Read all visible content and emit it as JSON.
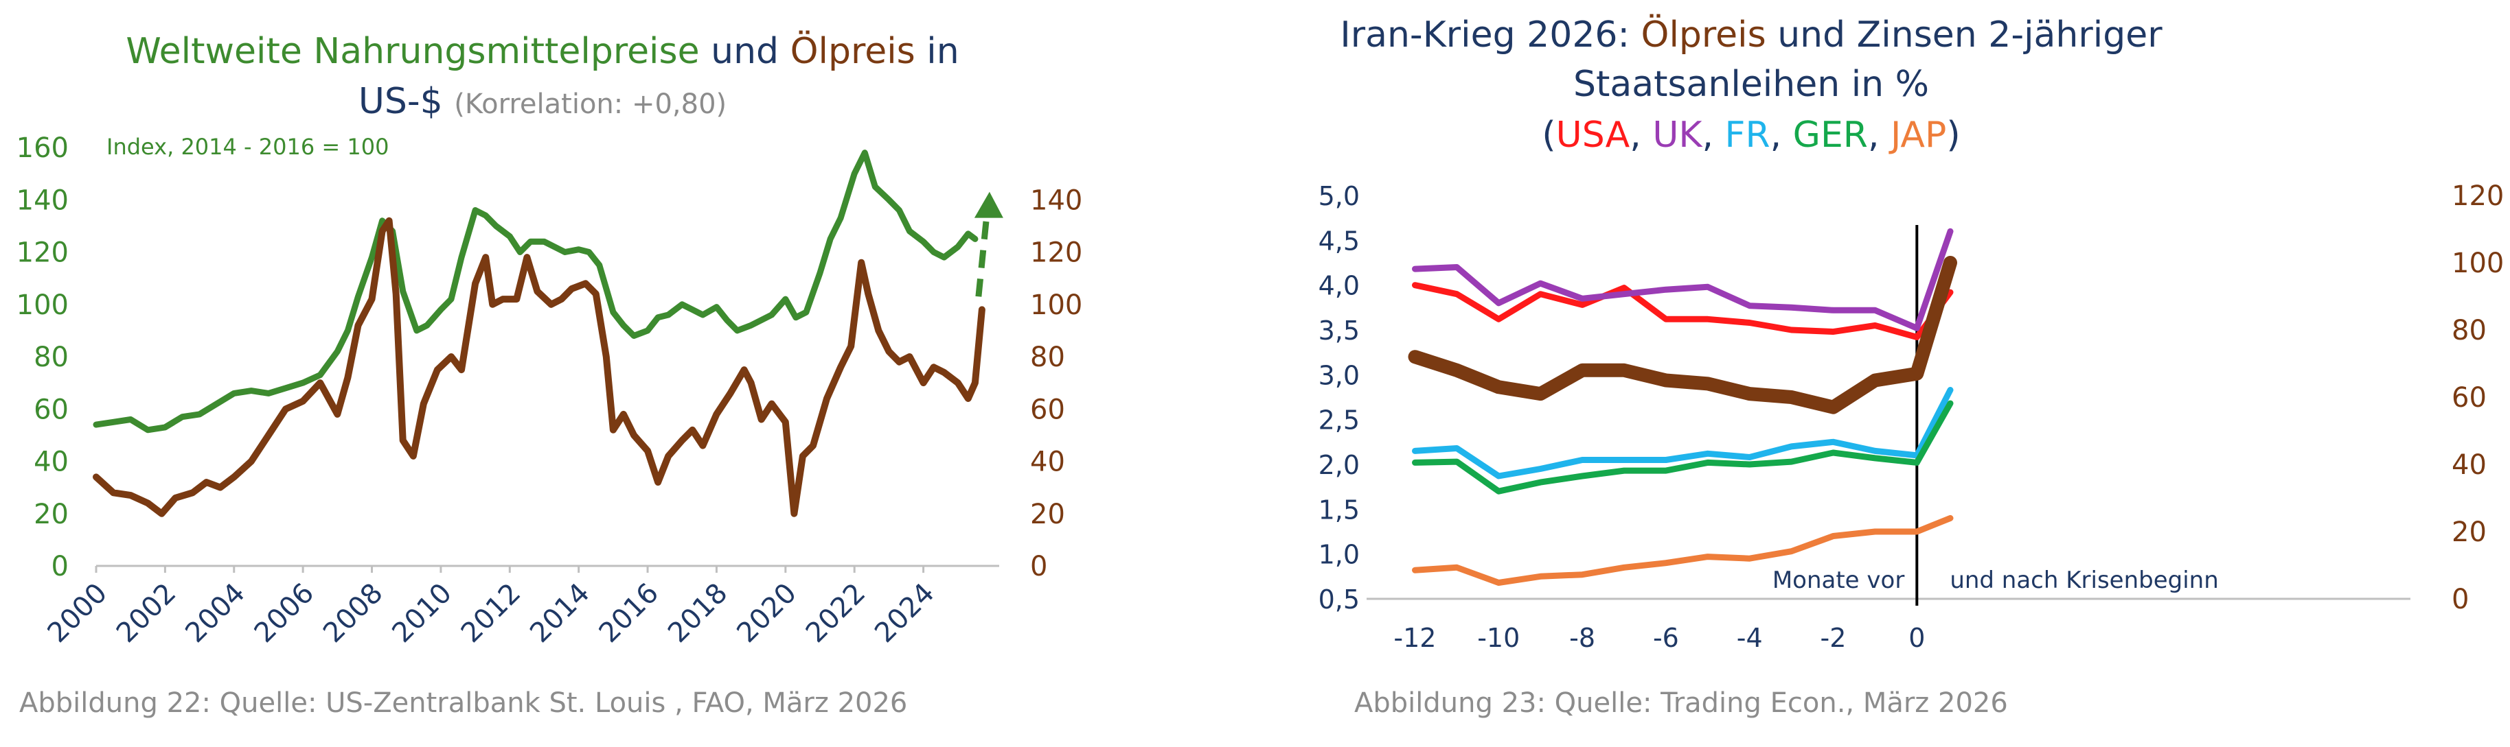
{
  "colors": {
    "green": "#3d8b2f",
    "brown": "#7a3a12",
    "navy": "#1f3864",
    "grey": "#8c8c8c",
    "usa": "#ff1a1a",
    "uk": "#9a3cb4",
    "fr": "#1fb4ec",
    "ger": "#14a84b",
    "jap": "#ee7d3a",
    "oil": "#7a3a12"
  },
  "left": {
    "caption": "Abbildung 22: Quelle: US-Zentralbank St. Louis , FAO, März 2026",
    "chart_data": {
      "type": "line",
      "title_parts": [
        {
          "text": "Weltweite Nahrungsmittelpreise",
          "color": "green"
        },
        {
          "text": " und ",
          "color": "navy"
        },
        {
          "text": "Ölpreis",
          "color": "brown"
        },
        {
          "text": " in",
          "color": "navy"
        }
      ],
      "title_line2": "US-$",
      "subtitle": "(Korrelation: +0,80)",
      "annotation": "Index, 2014 - 2016 = 100",
      "xlim": [
        2000,
        2026.2
      ],
      "x_ticks": [
        "2000",
        "2002",
        "2004",
        "2006",
        "2008",
        "2010",
        "2012",
        "2014",
        "2016",
        "2018",
        "2020",
        "2022",
        "2024"
      ],
      "y_left": {
        "lim": [
          0,
          160
        ],
        "ticks": [
          "0",
          "20",
          "40",
          "60",
          "80",
          "100",
          "120",
          "140",
          "160"
        ]
      },
      "y_right": {
        "lim": [
          0,
          140
        ],
        "ticks": [
          "0",
          "20",
          "40",
          "60",
          "80",
          "100",
          "120",
          "140"
        ]
      },
      "grid": false,
      "arrow": {
        "x": 2025.6,
        "from": 103,
        "to": 142,
        "axis": "right"
      },
      "series": [
        {
          "name": "Weltweite Nahrungsmittelpreise",
          "color": "green",
          "axis": "left",
          "x": [
            2000,
            2000.5,
            2001,
            2001.5,
            2002,
            2002.5,
            2003,
            2003.5,
            2004,
            2004.5,
            2005,
            2005.5,
            2006,
            2006.5,
            2007,
            2007.3,
            2007.6,
            2008,
            2008.3,
            2008.6,
            2008.9,
            2009.3,
            2009.6,
            2010,
            2010.3,
            2010.6,
            2011,
            2011.3,
            2011.6,
            2012,
            2012.3,
            2012.6,
            2013,
            2013.3,
            2013.6,
            2014,
            2014.3,
            2014.6,
            2015,
            2015.3,
            2015.6,
            2016,
            2016.3,
            2016.6,
            2017,
            2017.3,
            2017.6,
            2018,
            2018.3,
            2018.6,
            2019,
            2019.3,
            2019.6,
            2020,
            2020.3,
            2020.6,
            2021,
            2021.3,
            2021.6,
            2022,
            2022.3,
            2022.6,
            2023,
            2023.3,
            2023.6,
            2024,
            2024.3,
            2024.6,
            2025,
            2025.3,
            2025.5
          ],
          "y": [
            54,
            55,
            56,
            52,
            53,
            57,
            58,
            62,
            66,
            67,
            66,
            68,
            70,
            73,
            82,
            90,
            103,
            118,
            132,
            128,
            105,
            90,
            92,
            98,
            102,
            118,
            136,
            134,
            130,
            126,
            120,
            124,
            124,
            122,
            120,
            121,
            120,
            115,
            97,
            92,
            88,
            90,
            95,
            96,
            100,
            98,
            96,
            99,
            94,
            90,
            92,
            94,
            96,
            102,
            95,
            97,
            112,
            125,
            133,
            150,
            158,
            145,
            140,
            136,
            128,
            124,
            120,
            118,
            122,
            127,
            125
          ],
          "display_y": [
            54,
            55,
            56,
            52,
            53,
            57,
            58,
            62,
            66,
            67,
            66,
            68,
            70,
            73,
            82,
            90,
            103,
            118,
            132,
            128,
            105,
            90,
            92,
            98,
            102,
            118,
            136,
            134,
            130,
            126,
            120,
            124,
            124,
            122,
            120,
            121,
            120,
            115,
            97,
            92,
            88,
            90,
            95,
            96,
            100,
            98,
            96,
            99,
            94,
            90,
            92,
            94,
            96,
            102,
            95,
            97,
            112,
            125,
            133,
            150,
            158,
            145,
            140,
            136,
            128,
            124,
            120,
            118,
            122,
            127,
            125
          ]
        },
        {
          "name": "Ölpreis",
          "color": "brown",
          "axis": "right",
          "x": [
            2000,
            2000.5,
            2001,
            2001.5,
            2001.9,
            2002.3,
            2002.8,
            2003.2,
            2003.6,
            2004,
            2004.5,
            2005,
            2005.5,
            2006,
            2006.5,
            2007,
            2007.3,
            2007.6,
            2008,
            2008.3,
            2008.5,
            2008.7,
            2008.9,
            2009.2,
            2009.5,
            2009.9,
            2010.3,
            2010.6,
            2011,
            2011.3,
            2011.5,
            2011.8,
            2012.2,
            2012.5,
            2012.8,
            2013.2,
            2013.5,
            2013.8,
            2014.2,
            2014.5,
            2014.8,
            2015,
            2015.3,
            2015.6,
            2016,
            2016.3,
            2016.6,
            2017,
            2017.3,
            2017.6,
            2018,
            2018.4,
            2018.8,
            2019,
            2019.3,
            2019.6,
            2020,
            2020.25,
            2020.5,
            2020.8,
            2021.2,
            2021.6,
            2021.9,
            2022.2,
            2022.4,
            2022.7,
            2023,
            2023.3,
            2023.6,
            2024,
            2024.3,
            2024.6,
            2025,
            2025.3,
            2025.5,
            2025.7
          ],
          "y": [
            34,
            28,
            27,
            24,
            20,
            26,
            28,
            32,
            30,
            34,
            40,
            50,
            60,
            63,
            70,
            58,
            72,
            92,
            102,
            128,
            132,
            104,
            48,
            42,
            62,
            75,
            80,
            75,
            108,
            118,
            100,
            102,
            102,
            118,
            105,
            100,
            102,
            106,
            108,
            104,
            80,
            52,
            58,
            50,
            44,
            32,
            42,
            48,
            52,
            46,
            58,
            66,
            75,
            70,
            56,
            62,
            55,
            20,
            42,
            46,
            64,
            76,
            84,
            116,
            104,
            90,
            82,
            78,
            80,
            70,
            76,
            74,
            70,
            64,
            70,
            98
          ],
          "display_y": [
            34,
            28,
            27,
            24,
            20,
            26,
            28,
            32,
            30,
            34,
            40,
            50,
            60,
            63,
            70,
            58,
            72,
            92,
            102,
            128,
            132,
            104,
            48,
            42,
            62,
            75,
            80,
            75,
            108,
            118,
            100,
            102,
            102,
            118,
            105,
            100,
            102,
            106,
            108,
            104,
            80,
            52,
            58,
            50,
            44,
            32,
            42,
            48,
            52,
            46,
            58,
            66,
            75,
            70,
            56,
            62,
            55,
            20,
            42,
            46,
            64,
            76,
            84,
            116,
            104,
            90,
            82,
            78,
            80,
            70,
            76,
            74,
            70,
            64,
            70,
            98
          ]
        }
      ]
    }
  },
  "right": {
    "caption": "Abbildung 23: Quelle: Trading Econ., März 2026",
    "chart_data": {
      "type": "line",
      "title_line1_parts": [
        {
          "text": "Iran-Krieg 2026: ",
          "color": "navy"
        },
        {
          "text": "Ölpreis",
          "color": "brown"
        },
        {
          "text": " und Zinsen 2-jähriger",
          "color": "navy"
        }
      ],
      "title_line2": "Staatsanleihen in %",
      "title_line3_parts": [
        {
          "text": "(",
          "color": "navy"
        },
        {
          "text": "USA",
          "color": "usa"
        },
        {
          "text": ", ",
          "color": "navy"
        },
        {
          "text": "UK",
          "color": "uk"
        },
        {
          "text": ", ",
          "color": "navy"
        },
        {
          "text": "FR",
          "color": "fr"
        },
        {
          "text": ", ",
          "color": "navy"
        },
        {
          "text": "GER",
          "color": "ger"
        },
        {
          "text": ", ",
          "color": "navy"
        },
        {
          "text": "JAP",
          "color": "jap"
        },
        {
          "text": ")",
          "color": "navy"
        }
      ],
      "annotation_left": "Monate vor",
      "annotation_right": "und nach Krisenbeginn",
      "xlim": [
        -12.5,
        11.8
      ],
      "x_ticks": [
        "-12",
        "-10",
        "-8",
        "-6",
        "-4",
        "-2",
        "0"
      ],
      "y_left": {
        "lim": [
          0.5,
          5.0
        ],
        "ticks": [
          "0,5",
          "1,0",
          "1,5",
          "2,0",
          "2,5",
          "3,0",
          "3,5",
          "4,0",
          "4,5",
          "5,0"
        ]
      },
      "y_right": {
        "lim": [
          0,
          120
        ],
        "ticks": [
          "0",
          "20",
          "40",
          "60",
          "80",
          "100",
          "120"
        ]
      },
      "vline_x": 0,
      "grid": false,
      "series": [
        {
          "name": "USA",
          "color": "usa",
          "axis": "left",
          "x": [
            -12,
            -11,
            -10,
            -9,
            -8,
            -7,
            -6,
            -5,
            -4,
            -3,
            -2,
            -1,
            0,
            0.8
          ],
          "y": [
            4.0,
            3.9,
            3.62,
            3.9,
            3.78,
            3.97,
            3.62,
            3.62,
            3.58,
            3.5,
            3.48,
            3.55,
            3.42,
            3.92
          ]
        },
        {
          "name": "UK",
          "color": "uk",
          "axis": "left",
          "x": [
            -12,
            -11,
            -10,
            -9,
            -8,
            -7,
            -6,
            -5,
            -4,
            -3,
            -2,
            -1,
            0,
            0.8
          ],
          "y": [
            4.18,
            4.2,
            3.8,
            4.02,
            3.85,
            3.9,
            3.95,
            3.98,
            3.77,
            3.75,
            3.72,
            3.72,
            3.52,
            4.6
          ]
        },
        {
          "name": "FR",
          "color": "fr",
          "axis": "left",
          "x": [
            -12,
            -11,
            -10,
            -9,
            -8,
            -7,
            -6,
            -5,
            -4,
            -3,
            -2,
            -1,
            0,
            0.8
          ],
          "y": [
            2.15,
            2.18,
            1.87,
            1.95,
            2.05,
            2.05,
            2.05,
            2.12,
            2.08,
            2.2,
            2.25,
            2.15,
            2.1,
            2.83
          ]
        },
        {
          "name": "GER",
          "color": "ger",
          "axis": "left",
          "x": [
            -12,
            -11,
            -10,
            -9,
            -8,
            -7,
            -6,
            -5,
            -4,
            -3,
            -2,
            -1,
            0,
            0.8
          ],
          "y": [
            2.02,
            2.03,
            1.7,
            1.8,
            1.87,
            1.93,
            1.93,
            2.02,
            2.0,
            2.03,
            2.13,
            2.07,
            2.02,
            2.68
          ]
        },
        {
          "name": "JAP",
          "color": "jap",
          "axis": "left",
          "x": [
            -12,
            -11,
            -10,
            -9,
            -8,
            -7,
            -6,
            -5,
            -4,
            -3,
            -2,
            -1,
            0,
            0.8
          ],
          "y": [
            0.82,
            0.85,
            0.68,
            0.75,
            0.77,
            0.85,
            0.9,
            0.97,
            0.95,
            1.03,
            1.2,
            1.25,
            1.25,
            1.4
          ]
        },
        {
          "name": "Ölpreis",
          "color": "oil",
          "axis": "right",
          "x": [
            -12,
            -11,
            -10,
            -9,
            -8,
            -7,
            -6,
            -5,
            -4,
            -3,
            -2,
            -1,
            0,
            0.8
          ],
          "y": [
            72,
            68,
            63,
            61,
            68,
            68,
            65,
            64,
            61,
            60,
            57,
            65,
            67,
            100
          ]
        }
      ]
    }
  }
}
